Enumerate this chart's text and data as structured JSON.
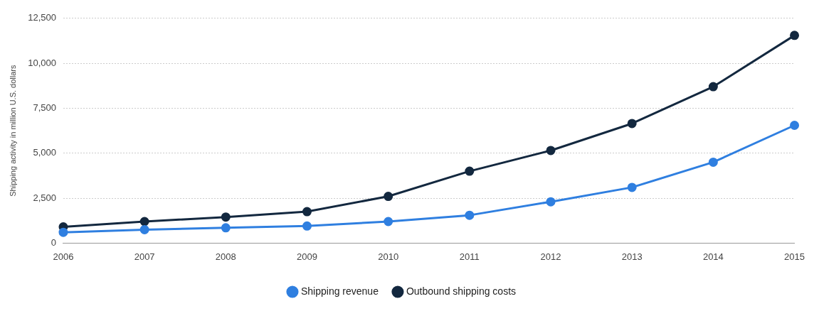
{
  "chart_data": {
    "type": "line",
    "ylabel": "Shipping activity in million U.S. dollars",
    "categories": [
      "2006",
      "2007",
      "2008",
      "2009",
      "2010",
      "2011",
      "2012",
      "2013",
      "2014",
      "2015"
    ],
    "series": [
      {
        "name": "Shipping revenue",
        "color": "#2f7fe0",
        "values": [
          600,
          750,
          850,
          950,
          1200,
          1550,
          2300,
          3100,
          4500,
          6550
        ]
      },
      {
        "name": "Outbound shipping costs",
        "color": "#13283f",
        "values": [
          900,
          1200,
          1450,
          1750,
          2600,
          4000,
          5150,
          6650,
          8700,
          11550
        ]
      }
    ],
    "ylim": [
      0,
      12500
    ],
    "yticks": [
      {
        "value": 0,
        "label": "0"
      },
      {
        "value": 2500,
        "label": "2,500"
      },
      {
        "value": 5000,
        "label": "5,000"
      },
      {
        "value": 7500,
        "label": "7,500"
      },
      {
        "value": 10000,
        "label": "10,000"
      },
      {
        "value": 12500,
        "label": "12,500"
      }
    ],
    "grid": "y",
    "legend": "bottom",
    "marker": "circle",
    "line_style": "solid"
  }
}
